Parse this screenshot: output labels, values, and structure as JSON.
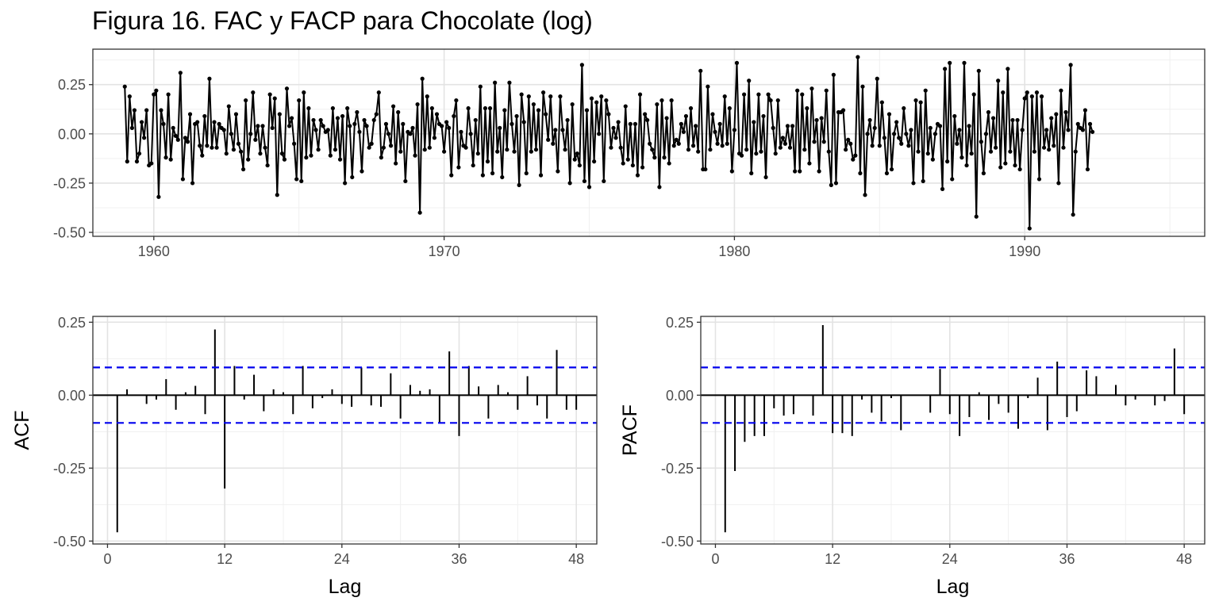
{
  "title": "Figura 16. FAC y FACP para Chocolate (log)",
  "colors": {
    "series": "#000000",
    "ci": "#0000ee",
    "grid_major": "#e3e3e3",
    "grid_minor": "#f0f0f0",
    "border": "#333333"
  },
  "chart_data": [
    {
      "type": "line",
      "name": "ts",
      "xlabel": "",
      "ylabel": "",
      "xlim": [
        1957.9,
        1996.2
      ],
      "ylim": [
        -0.52,
        0.43
      ],
      "x_ticks": [
        1960,
        1970,
        1980,
        1990
      ],
      "x_tick_labels": [
        "1960",
        "1970",
        "1980",
        "1990"
      ],
      "y_ticks": [
        0.25,
        0.0,
        -0.25,
        -0.5
      ],
      "y_tick_labels": [
        "0.25",
        "0.00",
        "-0.25",
        "-0.50"
      ],
      "start": 1959.0,
      "frequency": 12,
      "points": true,
      "grid": true,
      "values": [
        0.24,
        -0.14,
        0.19,
        0.03,
        0.12,
        -0.14,
        -0.1,
        0.06,
        -0.02,
        0.12,
        -0.16,
        -0.15,
        0.2,
        0.22,
        -0.32,
        0.12,
        0.05,
        -0.12,
        0.2,
        -0.13,
        0.03,
        -0.01,
        -0.03,
        0.31,
        -0.23,
        -0.02,
        -0.04,
        0.1,
        -0.25,
        0.05,
        0.06,
        -0.06,
        -0.11,
        0.09,
        -0.06,
        0.28,
        -0.07,
        0.06,
        -0.07,
        0.05,
        0.03,
        0.02,
        -0.1,
        0.14,
        0.0,
        -0.08,
        0.1,
        -0.05,
        -0.09,
        -0.18,
        0.17,
        -0.13,
        0.0,
        0.21,
        -0.03,
        0.04,
        -0.1,
        0.04,
        -0.07,
        -0.16,
        0.2,
        0.03,
        0.18,
        -0.31,
        0.1,
        -0.1,
        -0.13,
        0.23,
        0.04,
        0.08,
        -0.05,
        -0.23,
        0.17,
        -0.24,
        0.21,
        -0.12,
        0.13,
        -0.11,
        0.07,
        0.02,
        -0.08,
        0.07,
        0.04,
        0.01,
        0.02,
        -0.11,
        0.13,
        -0.08,
        0.08,
        -0.13,
        0.09,
        -0.25,
        0.13,
        0.04,
        -0.22,
        0.05,
        0.11,
        0.01,
        -0.19,
        0.07,
        0.04,
        -0.07,
        -0.05,
        0.07,
        0.1,
        0.21,
        -0.12,
        -0.07,
        0.05,
        0.0,
        -0.06,
        0.14,
        -0.15,
        0.11,
        -0.09,
        0.05,
        -0.24,
        0.01,
        0.0,
        0.03,
        -0.11,
        0.15,
        -0.4,
        0.28,
        -0.08,
        0.19,
        -0.07,
        0.13,
        -0.02,
        0.1,
        0.05,
        0.04,
        -0.09,
        0.06,
        0.03,
        -0.21,
        0.09,
        0.17,
        -0.17,
        0.01,
        -0.06,
        -0.07,
        0.13,
        0.0,
        -0.16,
        0.07,
        -0.1,
        0.24,
        -0.21,
        0.13,
        -0.14,
        0.13,
        -0.2,
        0.26,
        -0.09,
        0.03,
        -0.22,
        0.12,
        -0.08,
        0.26,
        0.05,
        -0.09,
        0.09,
        -0.26,
        0.2,
        0.06,
        -0.2,
        0.19,
        -0.09,
        0.15,
        -0.08,
        0.12,
        -0.21,
        0.21,
        0.1,
        -0.03,
        0.19,
        -0.05,
        0.02,
        -0.19,
        0.19,
        0.02,
        -0.08,
        0.07,
        -0.25,
        0.15,
        -0.13,
        -0.1,
        -0.16,
        0.35,
        -0.24,
        0.12,
        -0.27,
        0.18,
        -0.14,
        0.16,
        0.0,
        0.19,
        -0.24,
        0.17,
        0.1,
        -0.07,
        0.03,
        -0.02,
        0.06,
        -0.07,
        -0.15,
        0.14,
        -0.13,
        0.05,
        -0.16,
        0.05,
        -0.21,
        0.2,
        -0.17,
        0.1,
        0.07,
        -0.05,
        -0.08,
        -0.12,
        0.15,
        -0.27,
        0.17,
        -0.12,
        0.08,
        -0.15,
        0.17,
        -0.06,
        -0.03,
        -0.05,
        0.05,
        0.01,
        0.09,
        -0.08,
        0.13,
        -0.06,
        0.04,
        -0.09,
        0.32,
        -0.18,
        -0.18,
        0.24,
        -0.08,
        0.1,
        0.01,
        -0.05,
        0.05,
        -0.06,
        0.19,
        -0.05,
        0.13,
        -0.19,
        0.02,
        0.36,
        -0.1,
        -0.11,
        0.2,
        -0.08,
        0.27,
        -0.2,
        0.06,
        -0.1,
        0.2,
        -0.09,
        0.09,
        -0.22,
        0.2,
        0.17,
        0.03,
        -0.1,
        0.17,
        -0.07,
        -0.02,
        -0.05,
        0.04,
        -0.07,
        0.04,
        -0.19,
        0.22,
        -0.19,
        0.2,
        -0.08,
        0.13,
        -0.15,
        0.23,
        -0.04,
        0.07,
        -0.19,
        0.08,
        -0.04,
        0.22,
        -0.09,
        -0.26,
        0.3,
        -0.25,
        0.11,
        0.11,
        0.12,
        -0.08,
        -0.03,
        -0.05,
        -0.13,
        -0.11,
        0.39,
        -0.2,
        0.24,
        -0.31,
        0.0,
        0.07,
        -0.06,
        0.03,
        0.28,
        -0.06,
        0.16,
        -0.02,
        -0.2,
        0.1,
        -0.18,
        0.0,
        0.06,
        -0.02,
        -0.05,
        0.13,
        0.0,
        -0.06,
        0.02,
        -0.25,
        0.17,
        -0.09,
        0.16,
        -0.24,
        0.22,
        -0.1,
        0.03,
        -0.13,
        0.0,
        0.05,
        0.04,
        -0.28,
        0.33,
        -0.14,
        0.36,
        -0.23,
        0.09,
        -0.05,
        0.02,
        -0.12,
        0.36,
        -0.16,
        0.04,
        -0.1,
        0.2,
        -0.42,
        0.32,
        -0.04,
        -0.2,
        0.0,
        0.11,
        -0.09,
        0.08,
        -0.07,
        0.27,
        -0.17,
        0.21,
        -0.15,
        0.33,
        -0.09,
        0.07,
        -0.16,
        0.07,
        -0.18,
        0.02,
        0.18,
        0.21,
        -0.48,
        0.19,
        -0.09,
        0.21,
        -0.23,
        0.19,
        -0.07,
        0.02,
        -0.08,
        0.08,
        -0.06,
        0.1,
        -0.25,
        0.22,
        -0.07,
        0.11,
        0.02,
        0.35,
        -0.41,
        -0.09,
        0.05,
        0.03,
        0.02,
        0.12,
        -0.18,
        0.05,
        0.01
      ]
    },
    {
      "type": "bar",
      "name": "acf",
      "xlabel": "Lag",
      "ylabel": "ACF",
      "xlim": [
        -1.5,
        50.1
      ],
      "ylim": [
        -0.51,
        0.27
      ],
      "x_ticks": [
        0,
        12,
        24,
        36,
        48
      ],
      "x_tick_labels": [
        "0",
        "12",
        "24",
        "36",
        "48"
      ],
      "y_ticks": [
        0.25,
        0.0,
        -0.25,
        -0.5
      ],
      "y_tick_labels": [
        "0.25",
        "0.00",
        "-0.25",
        "-0.50"
      ],
      "ci": 0.095,
      "lags": [
        1,
        2,
        3,
        4,
        5,
        6,
        7,
        8,
        9,
        10,
        11,
        12,
        13,
        14,
        15,
        16,
        17,
        18,
        19,
        20,
        21,
        22,
        23,
        24,
        25,
        26,
        27,
        28,
        29,
        30,
        31,
        32,
        33,
        34,
        35,
        36,
        37,
        38,
        39,
        40,
        41,
        42,
        43,
        44,
        45,
        46,
        47,
        48
      ],
      "values": [
        -0.47,
        0.02,
        0.0,
        -0.03,
        -0.015,
        0.055,
        -0.05,
        0.01,
        0.032,
        -0.065,
        0.225,
        -0.32,
        0.1,
        -0.015,
        0.07,
        -0.055,
        0.02,
        0.01,
        -0.065,
        0.1,
        -0.045,
        -0.01,
        0.02,
        -0.03,
        -0.04,
        0.095,
        -0.035,
        -0.04,
        0.075,
        -0.08,
        0.035,
        0.015,
        0.02,
        -0.095,
        0.15,
        -0.14,
        0.1,
        0.03,
        -0.08,
        0.035,
        0.01,
        -0.05,
        0.065,
        -0.035,
        -0.08,
        0.155,
        -0.05,
        -0.05
      ]
    },
    {
      "type": "bar",
      "name": "pacf",
      "xlabel": "Lag",
      "ylabel": "PACF",
      "xlim": [
        -1.5,
        50.1
      ],
      "ylim": [
        -0.51,
        0.27
      ],
      "x_ticks": [
        0,
        12,
        24,
        36,
        48
      ],
      "x_tick_labels": [
        "0",
        "12",
        "24",
        "36",
        "48"
      ],
      "y_ticks": [
        0.25,
        0.0,
        -0.25,
        -0.5
      ],
      "y_tick_labels": [
        "0.25",
        "0.00",
        "-0.25",
        "-0.50"
      ],
      "ci": 0.095,
      "lags": [
        1,
        2,
        3,
        4,
        5,
        6,
        7,
        8,
        9,
        10,
        11,
        12,
        13,
        14,
        15,
        16,
        17,
        18,
        19,
        20,
        21,
        22,
        23,
        24,
        25,
        26,
        27,
        28,
        29,
        30,
        31,
        32,
        33,
        34,
        35,
        36,
        37,
        38,
        39,
        40,
        41,
        42,
        43,
        44,
        45,
        46,
        47,
        48
      ],
      "values": [
        -0.47,
        -0.26,
        -0.16,
        -0.14,
        -0.14,
        -0.045,
        -0.07,
        -0.065,
        0.0,
        -0.07,
        0.24,
        -0.13,
        -0.13,
        -0.14,
        -0.015,
        -0.06,
        -0.09,
        -0.01,
        -0.12,
        0.0,
        0.0,
        -0.06,
        0.09,
        -0.065,
        -0.14,
        -0.075,
        0.01,
        -0.085,
        -0.03,
        -0.06,
        -0.115,
        -0.01,
        0.06,
        -0.12,
        0.115,
        -0.075,
        -0.055,
        0.085,
        0.065,
        0.0,
        0.035,
        -0.035,
        -0.015,
        0.0,
        -0.035,
        -0.02,
        0.16,
        -0.065
      ]
    }
  ]
}
